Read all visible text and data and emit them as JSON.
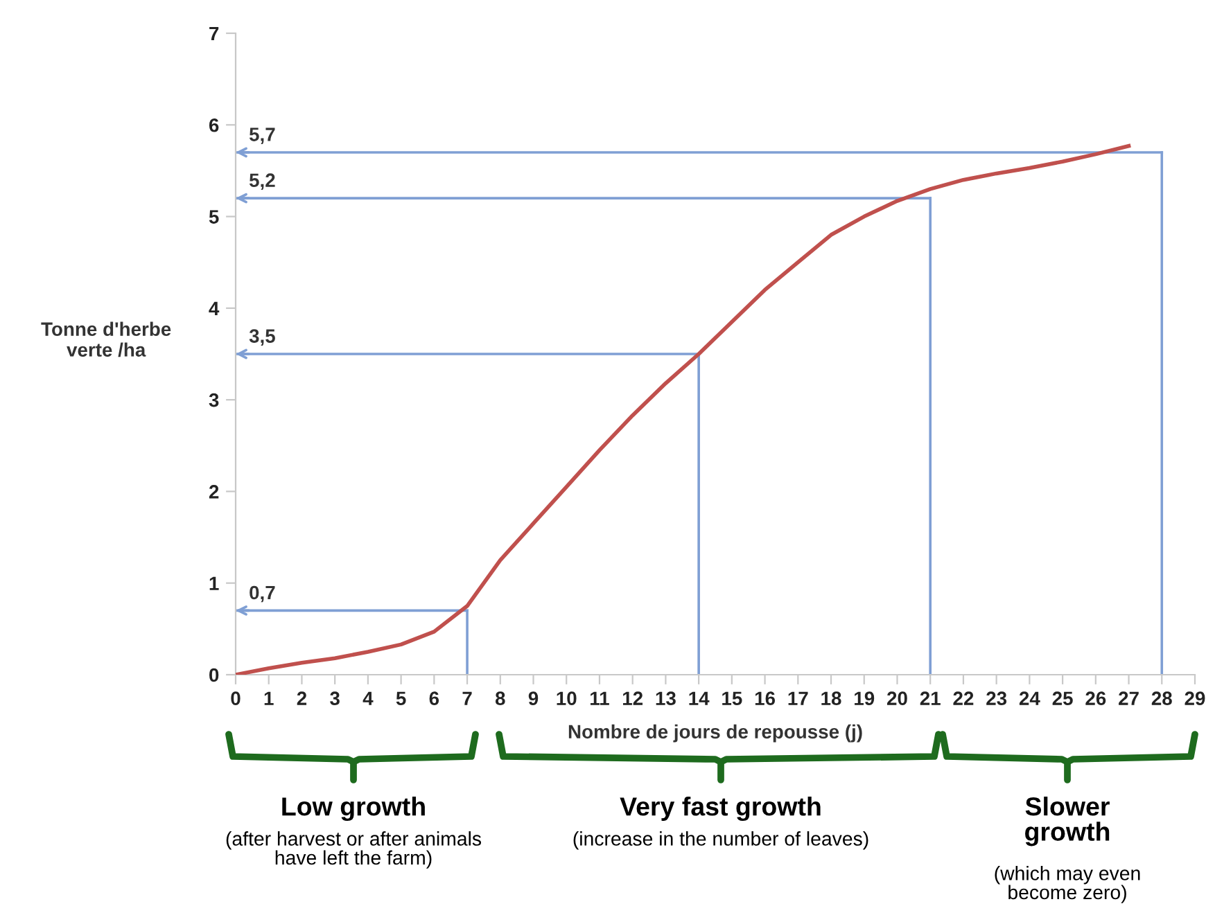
{
  "chart_data": {
    "type": "line",
    "xlabel": "Nombre de jours de repousse (j)",
    "ylabel": "Tonne d'herbe\nverte /ha",
    "x": [
      0,
      1,
      2,
      3,
      4,
      5,
      6,
      7,
      8,
      9,
      10,
      11,
      12,
      13,
      14,
      15,
      16,
      17,
      18,
      19,
      20,
      21,
      22,
      23,
      24,
      25,
      26,
      27
    ],
    "series": [
      {
        "color": "#c0504d",
        "values": [
          0,
          0.07,
          0.13,
          0.18,
          0.25,
          0.33,
          0.47,
          0.75,
          1.25,
          1.65,
          2.05,
          2.45,
          2.83,
          3.18,
          3.5,
          3.85,
          4.2,
          4.5,
          4.8,
          5.0,
          5.17,
          5.3,
          5.4,
          5.47,
          5.53,
          5.6,
          5.68,
          5.77
        ]
      }
    ],
    "xlim": [
      0,
      29
    ],
    "xticks": [
      0,
      1,
      2,
      3,
      4,
      5,
      6,
      7,
      8,
      9,
      10,
      11,
      12,
      13,
      14,
      15,
      16,
      17,
      18,
      19,
      20,
      21,
      22,
      23,
      24,
      25,
      26,
      27,
      28,
      29
    ],
    "ylim": [
      0,
      7
    ],
    "yticks": [
      0,
      1,
      2,
      3,
      4,
      5,
      6,
      7
    ],
    "grid": false,
    "legend": false,
    "marker": "none",
    "line_style": "solid",
    "ref_lines": [
      {
        "axis": "y",
        "value": 0.7,
        "label": "0,7",
        "color": "#7f9fd4"
      },
      {
        "axis": "y",
        "value": 3.5,
        "label": "3,5",
        "color": "#7f9fd4"
      },
      {
        "axis": "y",
        "value": 5.2,
        "label": "5,2",
        "color": "#7f9fd4"
      },
      {
        "axis": "y",
        "value": 5.7,
        "label": "5,7",
        "color": "#7f9fd4"
      },
      {
        "axis": "x",
        "value": 7,
        "color": "#7f9fd4"
      },
      {
        "axis": "x",
        "value": 14,
        "color": "#7f9fd4"
      },
      {
        "axis": "x",
        "value": 21,
        "color": "#7f9fd4"
      },
      {
        "axis": "x",
        "value": 28,
        "color": "#7f9fd4"
      }
    ],
    "annotations": [
      "Low growth",
      "(after harvest or after animals\nhave left the farm)",
      "Very fast growth",
      "(increase in the number of leaves)",
      "Slower\ngrowth",
      "(which may even\nbecome zero)"
    ]
  }
}
